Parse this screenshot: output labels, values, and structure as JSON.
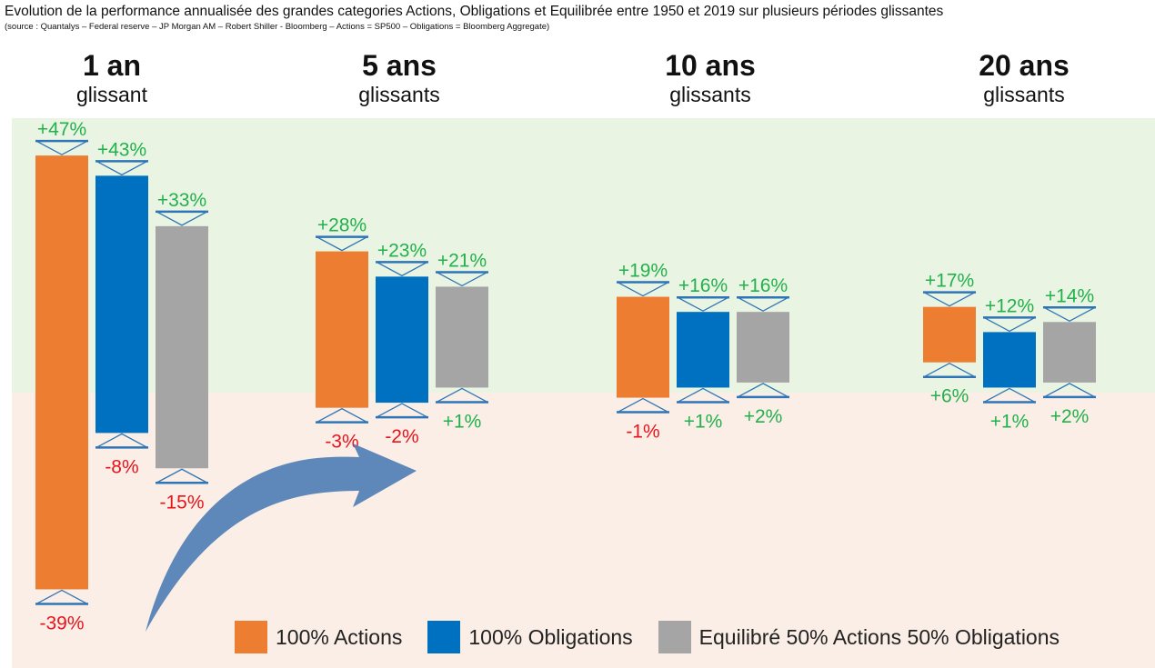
{
  "title": "Evolution de la performance annualisée des grandes categories Actions, Obligations et Equilibrée entre 1950 et 2019 sur plusieurs périodes glissantes",
  "subtitle": "(source : Quantalys – Federal reserve – JP Morgan AM – Robert Shiller - Bloomberg – Actions = SP500 – Obligations = Bloomberg Aggregate)",
  "periods": [
    {
      "main": "1 an",
      "sub": "glissant"
    },
    {
      "main": "5 ans",
      "sub": "glissants"
    },
    {
      "main": "10 ans",
      "sub": "glissants"
    },
    {
      "main": "20 ans",
      "sub": "glissants"
    }
  ],
  "legend": [
    {
      "label": "100% Actions",
      "color": "#ed7d31"
    },
    {
      "label": "100% Obligations",
      "color": "#0070c0"
    },
    {
      "label": "Equilibré 50% Actions 50% Obligations",
      "color": "#a5a5a5"
    }
  ],
  "colors": {
    "positive_zone": "#eaf4e3",
    "negative_zone": "#faeee6",
    "positive_text": "#22b14c",
    "negative_text": "#e8141c",
    "marker": "#2e75b6",
    "arrow": "#4f7fb5"
  },
  "chart_data": {
    "type": "bar",
    "subtype": "floating-range",
    "title": "Evolution de la performance annualisée des grandes categories Actions, Obligations et Equilibrée entre 1950 et 2019 sur plusieurs périodes glissantes",
    "categories": [
      "1 an glissant",
      "5 ans glissants",
      "10 ans glissants",
      "20 ans glissants"
    ],
    "unit": "%",
    "ylim": [
      -40,
      48
    ],
    "series": [
      {
        "name": "100% Actions",
        "color": "#ed7d31",
        "max": [
          47,
          28,
          19,
          17
        ],
        "min": [
          -39,
          -3,
          -1,
          6
        ],
        "max_labels": [
          "+47%",
          "+28%",
          "+19%",
          "+17%"
        ],
        "min_labels": [
          "-39%",
          "-3%",
          "-1%",
          "+6%"
        ]
      },
      {
        "name": "100% Obligations",
        "color": "#0070c0",
        "max": [
          43,
          23,
          16,
          12
        ],
        "min": [
          -8,
          -2,
          1,
          1
        ],
        "max_labels": [
          "+43%",
          "+23%",
          "+16%",
          "+12%"
        ],
        "min_labels": [
          "-8%",
          "-2%",
          "+1%",
          "+1%"
        ]
      },
      {
        "name": "Equilibré 50% Actions 50% Obligations",
        "color": "#a5a5a5",
        "max": [
          33,
          21,
          16,
          14
        ],
        "min": [
          -15,
          1,
          2,
          2
        ],
        "max_labels": [
          "+33%",
          "+21%",
          "+16%",
          "+14%"
        ],
        "min_labels": [
          "-15%",
          "+1%",
          "+2%",
          "+2%"
        ]
      }
    ]
  }
}
